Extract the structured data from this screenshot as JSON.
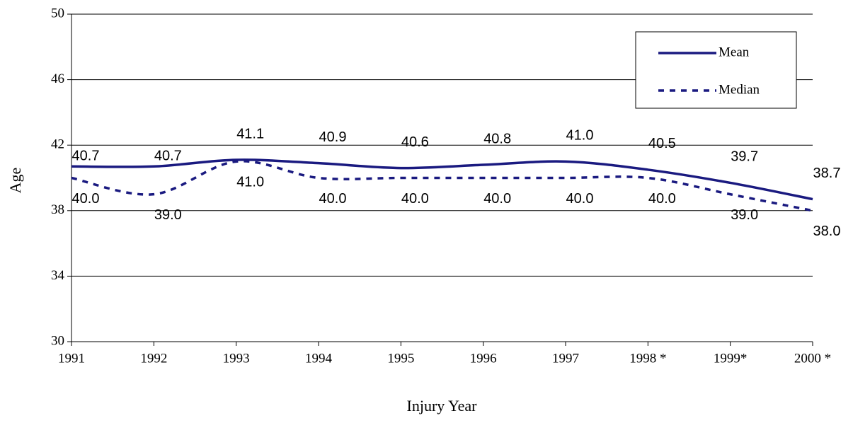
{
  "chart_data": {
    "type": "line",
    "categories": [
      "1991",
      "1992",
      "1993",
      "1994",
      "1995",
      "1996",
      "1997",
      "1998 *",
      "1999*",
      "2000 *"
    ],
    "series": [
      {
        "name": "Mean",
        "color": "#1a1a80",
        "dash": "solid",
        "values": [
          40.7,
          40.7,
          41.1,
          40.9,
          40.6,
          40.8,
          41.0,
          40.5,
          39.7,
          38.7
        ],
        "value_labels": [
          "40.7",
          "40.7",
          "41.1",
          "40.9",
          "40.6",
          "40.8",
          "41.0",
          "40.5",
          "39.7",
          "38.7"
        ]
      },
      {
        "name": "Median",
        "color": "#1a1a80",
        "dash": "dashed",
        "values": [
          40,
          39,
          41,
          40,
          40,
          40,
          40,
          40,
          39,
          38
        ],
        "value_labels": [
          "40.0",
          "39.0",
          "41.0",
          "40.0",
          "40.0",
          "40.0",
          "40.0",
          "40.0",
          "39.0",
          "38.0"
        ]
      }
    ],
    "ylim": [
      30,
      50
    ],
    "yticks": [
      30,
      34,
      38,
      42,
      46,
      50
    ],
    "grid": true,
    "ylabel": "Age",
    "xlabel": "Injury Year",
    "legend": "upper right"
  }
}
